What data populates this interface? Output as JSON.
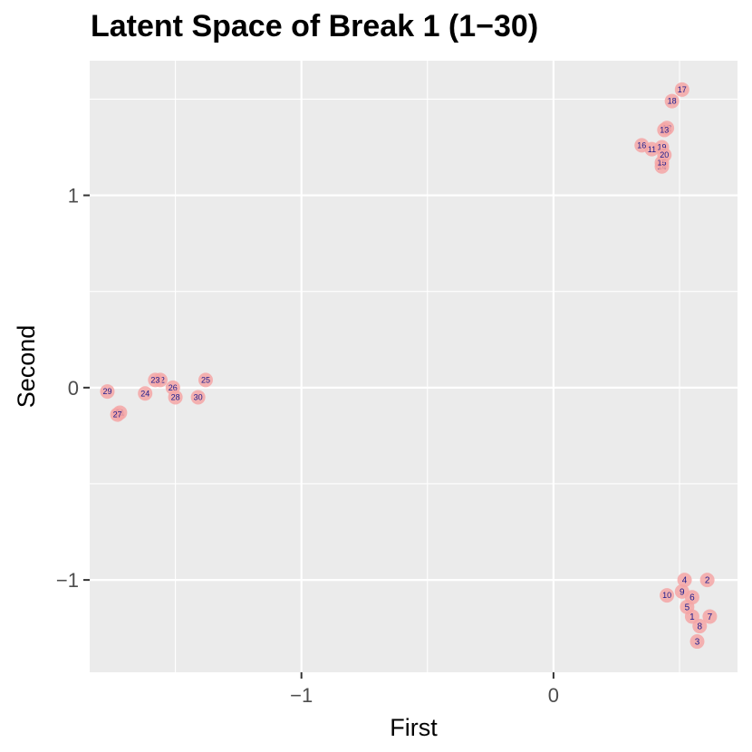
{
  "chart_data": {
    "type": "scatter",
    "title": "Latent Space of Break 1 (1−30)",
    "xlabel": "First",
    "ylabel": "Second",
    "xlim": [
      -1.84,
      0.73
    ],
    "ylim": [
      -1.48,
      1.7
    ],
    "x_ticks": [
      {
        "value": -1,
        "label": "−1"
      },
      {
        "value": 0,
        "label": "0"
      }
    ],
    "y_ticks": [
      {
        "value": -1,
        "label": "−1"
      },
      {
        "value": 0,
        "label": "0"
      },
      {
        "value": 1,
        "label": "1"
      }
    ],
    "x_minor": [
      -1.5,
      -0.5,
      0.5
    ],
    "y_minor": [
      -0.5,
      0.5,
      1.5
    ],
    "grid": true,
    "colors": {
      "panel": "#ebebeb",
      "grid": "#ffffff",
      "point": "#f4a6a6",
      "label": "#1a1a8c"
    },
    "points": [
      {
        "label": "1",
        "x": 0.55,
        "y": -1.19
      },
      {
        "label": "2",
        "x": 0.61,
        "y": -1.0
      },
      {
        "label": "3",
        "x": 0.57,
        "y": -1.32
      },
      {
        "label": "4",
        "x": 0.52,
        "y": -1.0
      },
      {
        "label": "5",
        "x": 0.53,
        "y": -1.14
      },
      {
        "label": "6",
        "x": 0.55,
        "y": -1.09
      },
      {
        "label": "7",
        "x": 0.62,
        "y": -1.19
      },
      {
        "label": "8",
        "x": 0.58,
        "y": -1.24
      },
      {
        "label": "9",
        "x": 0.51,
        "y": -1.06
      },
      {
        "label": "10",
        "x": 0.45,
        "y": -1.08
      },
      {
        "label": "11",
        "x": 0.39,
        "y": 1.24
      },
      {
        "label": "12",
        "x": 0.45,
        "y": 1.35
      },
      {
        "label": "13",
        "x": 0.44,
        "y": 1.34
      },
      {
        "label": "14",
        "x": 0.43,
        "y": 1.15
      },
      {
        "label": "15",
        "x": 0.43,
        "y": 1.17
      },
      {
        "label": "16",
        "x": 0.35,
        "y": 1.26
      },
      {
        "label": "17",
        "x": 0.51,
        "y": 1.55
      },
      {
        "label": "18",
        "x": 0.47,
        "y": 1.49
      },
      {
        "label": "19",
        "x": 0.43,
        "y": 1.25
      },
      {
        "label": "20",
        "x": 0.44,
        "y": 1.21
      },
      {
        "label": "21",
        "x": -1.72,
        "y": -0.13
      },
      {
        "label": "22",
        "x": -1.56,
        "y": 0.04
      },
      {
        "label": "23",
        "x": -1.58,
        "y": 0.04
      },
      {
        "label": "24",
        "x": -1.62,
        "y": -0.03
      },
      {
        "label": "25",
        "x": -1.38,
        "y": 0.04
      },
      {
        "label": "26",
        "x": -1.51,
        "y": 0.0
      },
      {
        "label": "27",
        "x": -1.73,
        "y": -0.14
      },
      {
        "label": "28",
        "x": -1.5,
        "y": -0.05
      },
      {
        "label": "29",
        "x": -1.77,
        "y": -0.02
      },
      {
        "label": "30",
        "x": -1.41,
        "y": -0.05
      }
    ]
  }
}
